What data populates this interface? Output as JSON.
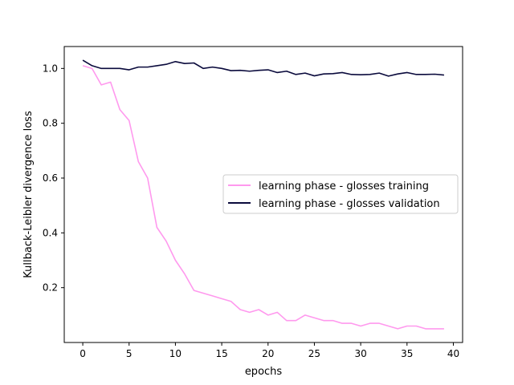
{
  "chart_data": {
    "type": "line",
    "title": "",
    "xlabel": "epochs",
    "ylabel": "Kullback-Leibler divergence loss",
    "xlim": [
      -2,
      41
    ],
    "ylim": [
      0,
      1.08
    ],
    "xticks": [
      0,
      5,
      10,
      15,
      20,
      25,
      30,
      35,
      40
    ],
    "yticks": [
      0.2,
      0.4,
      0.6,
      0.8,
      1.0
    ],
    "xtick_labels": [
      "0",
      "5",
      "10",
      "15",
      "20",
      "25",
      "30",
      "35",
      "40"
    ],
    "ytick_labels": [
      "0.2",
      "0.4",
      "0.6",
      "0.8",
      "1.0"
    ],
    "grid": false,
    "legend_position": "center-right",
    "x": [
      0,
      1,
      2,
      3,
      4,
      5,
      6,
      7,
      8,
      9,
      10,
      11,
      12,
      13,
      14,
      15,
      16,
      17,
      18,
      19,
      20,
      21,
      22,
      23,
      24,
      25,
      26,
      27,
      28,
      29,
      30,
      31,
      32,
      33,
      34,
      35,
      36,
      37,
      38,
      39
    ],
    "series": [
      {
        "name": "learning phase - glosses training",
        "color": "#ff99ee",
        "values": [
          1.01,
          1.0,
          0.94,
          0.95,
          0.85,
          0.81,
          0.66,
          0.6,
          0.42,
          0.37,
          0.3,
          0.25,
          0.19,
          0.18,
          0.17,
          0.16,
          0.15,
          0.12,
          0.11,
          0.12,
          0.1,
          0.11,
          0.08,
          0.08,
          0.1,
          0.09,
          0.08,
          0.08,
          0.07,
          0.07,
          0.06,
          0.07,
          0.07,
          0.06,
          0.05,
          0.06,
          0.06,
          0.05,
          0.05,
          0.05
        ]
      },
      {
        "name": "learning phase - glosses validation",
        "color": "#0a0a3c",
        "values": [
          1.03,
          1.01,
          1.0,
          1.0,
          1.0,
          0.995,
          1.005,
          1.005,
          1.01,
          1.015,
          1.025,
          1.018,
          1.02,
          1.0,
          1.005,
          1.0,
          0.992,
          0.993,
          0.99,
          0.993,
          0.995,
          0.985,
          0.99,
          0.978,
          0.983,
          0.973,
          0.98,
          0.981,
          0.985,
          0.978,
          0.977,
          0.978,
          0.983,
          0.972,
          0.98,
          0.985,
          0.978,
          0.978,
          0.979,
          0.976
        ]
      }
    ]
  }
}
